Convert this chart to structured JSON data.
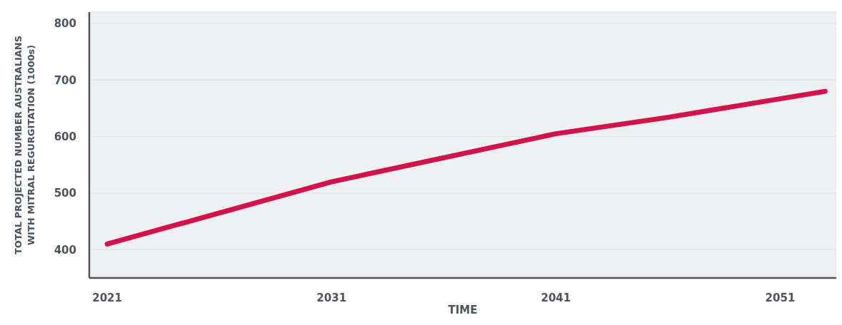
{
  "chart_data": {
    "type": "line",
    "xlabel": "TIME",
    "ylabel": "TOTAL PROJECTED NUMBER AUSTRALIANS WITH MITRAL REGURGITATION (1000s)",
    "x": [
      2021,
      2031,
      2041,
      2046,
      2053
    ],
    "series": [
      {
        "color": "#d4124a",
        "values": [
          410,
          520,
          605,
          634,
          680
        ]
      }
    ],
    "xlim": [
      2020.2,
      2053.5
    ],
    "xticks": [
      2021,
      2031,
      2041,
      2051
    ],
    "ylim": [
      350,
      820
    ],
    "yticks": [
      400,
      500,
      600,
      700,
      800
    ],
    "grid": "y",
    "legend": false,
    "marker": "none",
    "line_style": "solid"
  }
}
